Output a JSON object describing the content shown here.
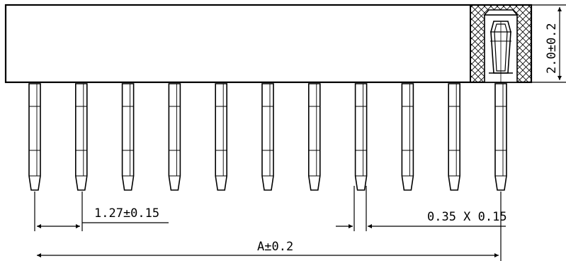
{
  "drawing": {
    "pin_count": 11,
    "labels": {
      "pitch": "1.27±0.15",
      "pin_size": "0.35 X 0.15",
      "overall": "A±0.2",
      "height": "2.0±0.2"
    },
    "colors": {
      "line": "#000000",
      "background": "#ffffff"
    }
  }
}
